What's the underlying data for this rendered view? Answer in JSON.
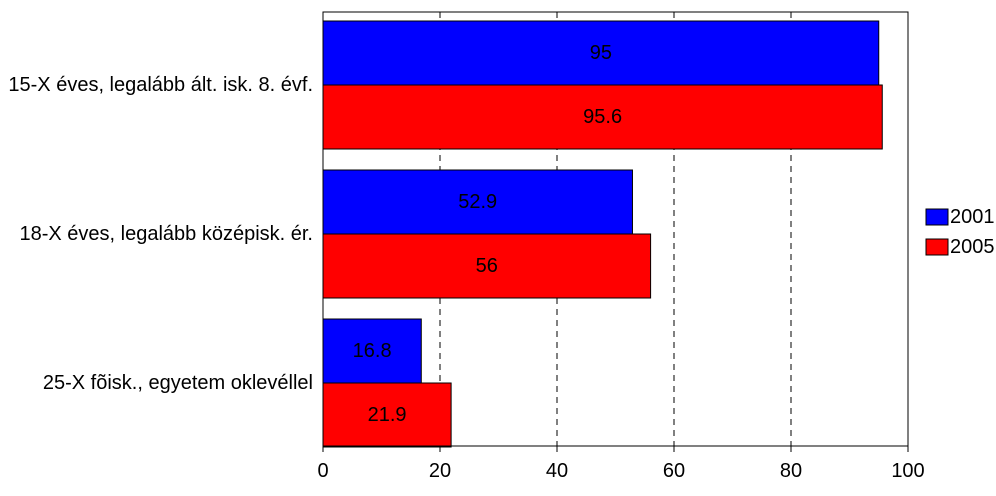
{
  "chart_data": {
    "type": "bar",
    "orientation": "horizontal",
    "categories": [
      "15-X éves, legalább ált. isk. 8. évf.",
      "18-X éves, legalább középisk. ér.",
      "25-X fõisk., egyetem oklevéllel"
    ],
    "series": [
      {
        "name": "2001",
        "values": [
          95,
          52.9,
          16.8
        ],
        "color": "#0000ff"
      },
      {
        "name": "2005",
        "values": [
          95.6,
          56,
          21.9
        ],
        "color": "#ff0000"
      }
    ],
    "value_labels": [
      [
        "95",
        "52.9",
        "16.8"
      ],
      [
        "95.6",
        "56",
        "21.9"
      ]
    ],
    "xlim": [
      0,
      100
    ],
    "xticks": [
      0,
      20,
      40,
      60,
      80,
      100
    ],
    "xtick_labels": [
      "0",
      "20",
      "40",
      "60",
      "80",
      "100"
    ],
    "title": "",
    "xlabel": "",
    "ylabel": "",
    "grid": "vertical dashed",
    "legend_position": "right"
  }
}
